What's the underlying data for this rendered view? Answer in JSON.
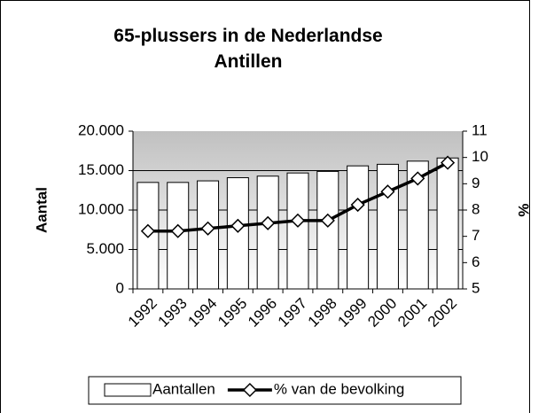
{
  "chart_data": {
    "type": "bar",
    "title": "65-plussers in de Nederlandse Antillen",
    "categories": [
      "1992",
      "1993",
      "1994",
      "1995",
      "1996",
      "1997",
      "1998",
      "1999",
      "2000",
      "2001",
      "2002"
    ],
    "series": [
      {
        "name": "Aantallen",
        "type": "bar",
        "color": "#ffffff",
        "values": [
          13500,
          13500,
          13700,
          14100,
          14300,
          14700,
          14900,
          15600,
          15800,
          16200,
          16600
        ]
      },
      {
        "name": "% van de bevolking",
        "type": "line",
        "axis": "y2",
        "color": "#000000",
        "values": [
          7.2,
          7.2,
          7.3,
          7.4,
          7.5,
          7.6,
          7.6,
          8.2,
          8.7,
          9.2,
          9.8
        ]
      }
    ],
    "ylabel": "Aantal",
    "y2label": "%",
    "ylim": [
      0,
      20000
    ],
    "yticks": [
      0,
      {
        "value": 5000,
        "label": "5.000"
      },
      {
        "value": 10000,
        "label": "10.000"
      },
      {
        "value": 15000,
        "label": "15.000"
      },
      {
        "value": 20000,
        "label": "20.000"
      }
    ],
    "y2lim": [
      5,
      11
    ],
    "y2ticks": [
      5,
      6,
      7,
      8,
      9,
      10,
      11
    ],
    "grid": true,
    "legend": "bottom"
  }
}
